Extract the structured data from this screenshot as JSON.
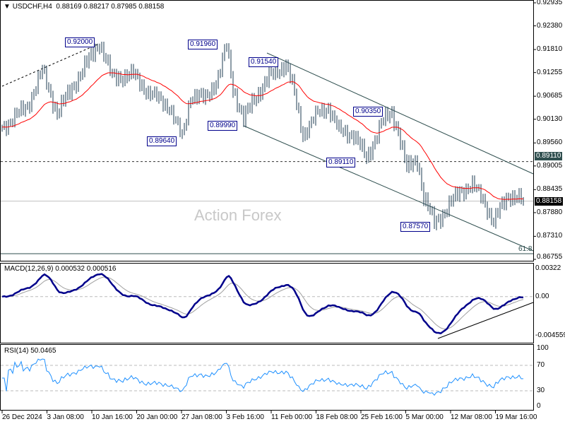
{
  "header": {
    "symbol": "USDCHF,H4",
    "open": "0.88169",
    "high": "0.88217",
    "low": "0.87985",
    "close": "0.88158"
  },
  "watermark": "Action Forex",
  "price_axis": [
    "0.92935",
    "0.92380",
    "0.91810",
    "0.91255",
    "0.90685",
    "0.90130",
    "0.89560",
    "0.89005",
    "0.88435",
    "0.87880",
    "0.87310",
    "0.86755"
  ],
  "current_price": "0.88158",
  "level_price": "0.89110",
  "fib_label": "61.8",
  "annotations": [
    "0.92000",
    "0.91960",
    "0.91540",
    "0.90350",
    "0.89990",
    "0.89640",
    "0.89110",
    "0.87570"
  ],
  "macd": {
    "title": "MACD(12,26,9) 0.000532 0.000516",
    "axis": [
      "0.00322",
      "0.00",
      "-0.004559"
    ]
  },
  "rsi": {
    "title": "RSI(14) 50.0465",
    "axis": [
      "100",
      "70",
      "30",
      "0"
    ]
  },
  "time_axis": [
    "26 Dec 2024",
    "3 Jan 08:00",
    "10 Jan 16:00",
    "20 Jan 00:00",
    "27 Jan 08:00",
    "3 Feb 16:00",
    "11 Feb 00:00",
    "18 Feb 08:00",
    "25 Feb 16:00",
    "5 Mar 00:00",
    "12 Mar 08:00",
    "19 Mar 16:00"
  ],
  "colors": {
    "bars": "#1c3b50",
    "ma": "#ff0000",
    "macd": "#00008b",
    "signal": "#a0a0a0",
    "rsi": "#1e90ff"
  },
  "chart_data": {
    "type": "ohlc",
    "ylim": [
      0.86755,
      0.92935
    ],
    "keypoints": [
      [
        0,
        0.8994
      ],
      [
        12,
        0.9045
      ],
      [
        19,
        0.913
      ],
      [
        26,
        0.9028
      ],
      [
        32,
        0.9079
      ],
      [
        42,
        0.9164
      ],
      [
        46,
        0.9198
      ],
      [
        52,
        0.9113
      ],
      [
        62,
        0.9121
      ],
      [
        69,
        0.9079
      ],
      [
        79,
        0.9045
      ],
      [
        85,
        0.8968
      ],
      [
        89,
        0.9071
      ],
      [
        96,
        0.9062
      ],
      [
        102,
        0.9113
      ],
      [
        106,
        0.919
      ],
      [
        109,
        0.9088
      ],
      [
        114,
        0.9011
      ],
      [
        119,
        0.9062
      ],
      [
        126,
        0.9113
      ],
      [
        134,
        0.9147
      ],
      [
        137,
        0.9096
      ],
      [
        142,
        0.8977
      ],
      [
        149,
        0.9028
      ],
      [
        154,
        0.9045
      ],
      [
        159,
        0.8985
      ],
      [
        166,
        0.8977
      ],
      [
        172,
        0.8917
      ],
      [
        179,
        0.9002
      ],
      [
        184,
        0.9028
      ],
      [
        187,
        0.8985
      ],
      [
        191,
        0.8892
      ],
      [
        196,
        0.8917
      ],
      [
        199,
        0.8824
      ],
      [
        204,
        0.8764
      ],
      [
        209,
        0.879
      ],
      [
        216,
        0.8841
      ],
      [
        222,
        0.8854
      ],
      [
        227,
        0.8824
      ],
      [
        232,
        0.8764
      ],
      [
        236,
        0.8807
      ],
      [
        239,
        0.8832
      ],
      [
        246,
        0.8816
      ]
    ]
  }
}
